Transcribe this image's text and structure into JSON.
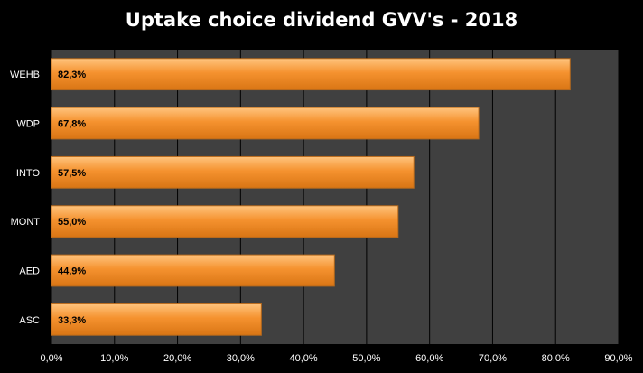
{
  "chart_data": {
    "type": "bar",
    "orientation": "horizontal",
    "title": "Uptake choice dividend GVV's - 2018",
    "categories": [
      "WEHB",
      "WDP",
      "INTO",
      "MONT",
      "AED",
      "ASC"
    ],
    "values": [
      82.3,
      67.8,
      57.5,
      55.0,
      44.9,
      33.3
    ],
    "data_labels": [
      "82,3%",
      "67,8%",
      "57,5%",
      "55,0%",
      "44,9%",
      "33,3%"
    ],
    "xlim": [
      0,
      90
    ],
    "x_ticks": [
      0,
      10,
      20,
      30,
      40,
      50,
      60,
      70,
      80,
      90
    ],
    "x_tick_labels": [
      "0,0%",
      "10,0%",
      "20,0%",
      "30,0%",
      "40,0%",
      "50,0%",
      "60,0%",
      "70,0%",
      "80,0%",
      "90,0%"
    ],
    "grid": true,
    "legend": "none",
    "colors": {
      "background": "#000000",
      "plot_area": "#404040",
      "gridline": "#000000",
      "bar_fill_light": "#ffc47e",
      "bar_fill": "#f5922f",
      "bar_fill_dark": "#d97514",
      "bar_stroke": "#b86a1c",
      "text": "#ffffff",
      "data_label": "#000000"
    }
  }
}
